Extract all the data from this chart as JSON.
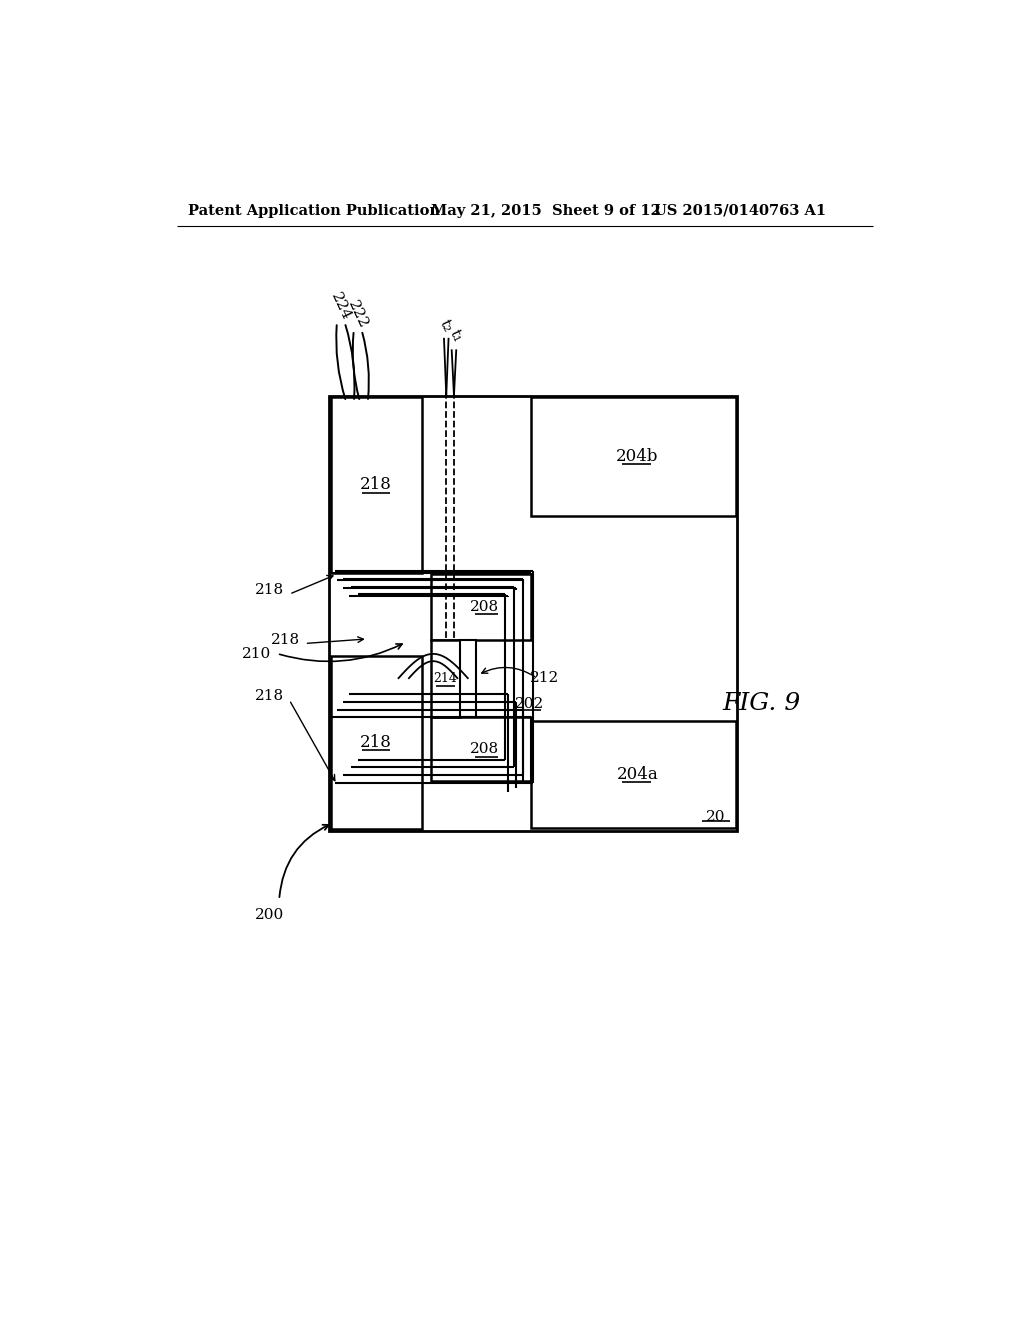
{
  "bg_color": "#ffffff",
  "header_left": "Patent Application Publication",
  "header_mid": "May 21, 2015  Sheet 9 of 12",
  "header_right": "US 2015/0140763 A1",
  "fig_label": "FIG. 9"
}
